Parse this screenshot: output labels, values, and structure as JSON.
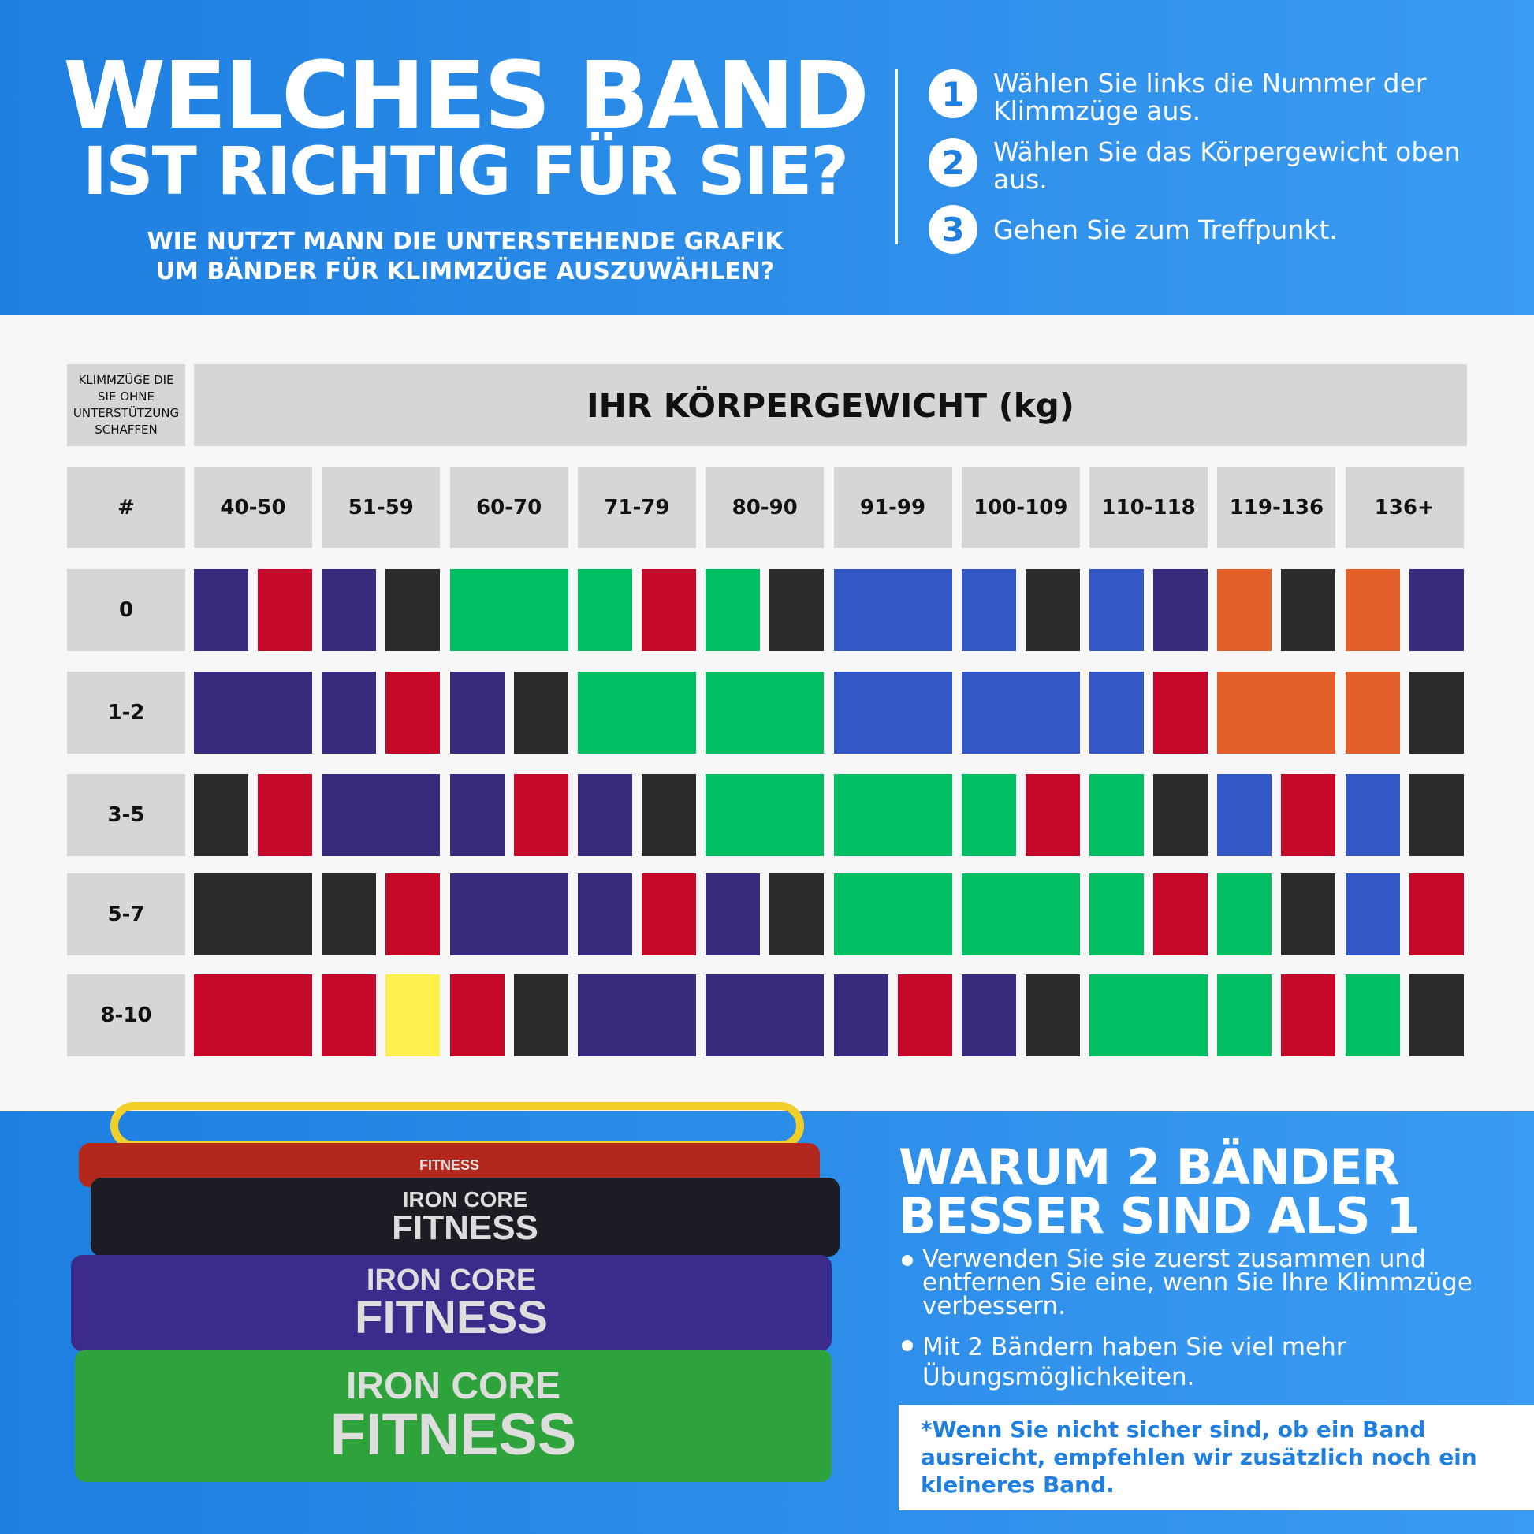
{
  "header": {
    "title_line1": "WELCHES BAND",
    "title_line2": "IST RICHTIG FÜR SIE?",
    "subtitle_line1": "WIE NUTZT MANN DIE UNTERSTEHENDE GRAFIK",
    "subtitle_line2": "UM BÄNDER FÜR KLIMMZÜGE AUSZUWÄHLEN?",
    "steps": [
      {
        "n": "1",
        "text": "Wählen Sie links die Nummer der Klimmzüge aus."
      },
      {
        "n": "2",
        "text": "Wählen Sie das Körpergewicht oben aus."
      },
      {
        "n": "3",
        "text": "Gehen Sie zum Treffpunkt."
      }
    ]
  },
  "table": {
    "corner_label": "KLIMMZÜGE DIE SIE OHNE UNTERSTÜTZUNG SCHAFFEN",
    "header": "IHR KÖRPERGEWICHT (kg)",
    "hash": "#",
    "weights": [
      "40-50",
      "51-59",
      "60-70",
      "71-79",
      "80-90",
      "91-99",
      "100-109",
      "110-118",
      "119-136",
      "136+"
    ],
    "colors": {
      "P": "#382a7c",
      "R": "#c5072a",
      "K": "#2b2b2b",
      "G": "#00bf63",
      "B": "#3358c5",
      "O": "#e4602a",
      "Y": "#fff04f"
    },
    "rows": [
      {
        "label": "0",
        "cells": [
          "PR",
          "PK",
          "G",
          "GR",
          "GK",
          "B",
          "BK",
          "BP",
          "OK",
          "OP"
        ]
      },
      {
        "label": "1-2",
        "cells": [
          "P",
          "PR",
          "PK",
          "G",
          "G",
          "B",
          "B",
          "BR",
          "O",
          "OK"
        ]
      },
      {
        "label": "3-5",
        "cells": [
          "KR",
          "P",
          "PR",
          "PK",
          "G",
          "G",
          "GR",
          "GK",
          "BR",
          "BK"
        ]
      },
      {
        "label": "5-7",
        "cells": [
          "K",
          "KR",
          "P",
          "PR",
          "PK",
          "G",
          "G",
          "GR",
          "GK",
          "BR"
        ]
      },
      {
        "label": "8-10",
        "cells": [
          "R",
          "RY",
          "RK",
          "P",
          "P",
          "PR",
          "PK",
          "G",
          "GR",
          "GK"
        ]
      }
    ]
  },
  "bands": {
    "logo_top": "IRON CORE",
    "logo_bottom": "FITNESS"
  },
  "bottom": {
    "title_line1": "WARUM 2 BÄNDER",
    "title_line2": "BESSER SIND ALS 1",
    "bullets": [
      "Verwenden Sie sie zuerst zusammen und entfernen Sie eine, wenn Sie Ihre Klimmzüge verbessern.",
      "Mit 2 Bändern haben Sie viel mehr Übungsmöglichkeiten."
    ],
    "note": "*Wenn Sie nicht sicher sind, ob ein Band ausreicht, empfehlen wir zusätzlich noch ein kleineres Band."
  }
}
